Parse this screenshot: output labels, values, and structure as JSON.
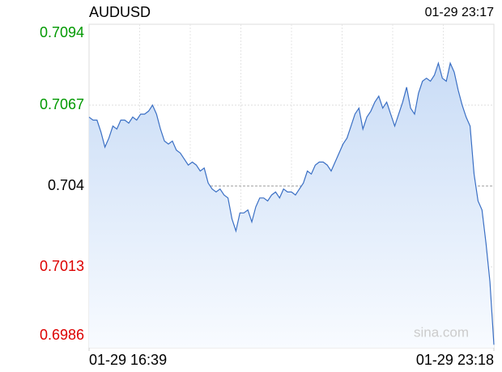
{
  "chart_data": {
    "type": "line",
    "title": "AUDUSD",
    "timestamp": "01-29 23:17",
    "watermark": "sina.com",
    "xlim": [
      0,
      102
    ],
    "xticks": [
      {
        "value": 0,
        "label": "01-29 16:39"
      },
      {
        "value": 102,
        "label": "01-29 23:18"
      }
    ],
    "xgrid": 8,
    "ylim": [
      0.6986,
      0.7094
    ],
    "yticks": [
      0.7094,
      0.7067,
      0.704,
      0.7013,
      0.6986
    ],
    "prev_close": 0.704,
    "up_color": "#009900",
    "down_color": "#dd0000",
    "grid": true,
    "series": [
      {
        "color": "#3a6fc4",
        "values": [
          0.7063,
          0.7062,
          0.7062,
          0.7058,
          0.7053,
          0.7056,
          0.706,
          0.7059,
          0.7062,
          0.7062,
          0.7061,
          0.7063,
          0.7062,
          0.7064,
          0.7064,
          0.7065,
          0.7067,
          0.7064,
          0.7059,
          0.7055,
          0.7054,
          0.7055,
          0.7052,
          0.7051,
          0.7049,
          0.7047,
          0.7048,
          0.7047,
          0.7045,
          0.7046,
          0.7041,
          0.7039,
          0.7038,
          0.7039,
          0.7037,
          0.7036,
          0.7029,
          0.7025,
          0.7031,
          0.7031,
          0.7032,
          0.7028,
          0.7033,
          0.7036,
          0.7036,
          0.7035,
          0.7037,
          0.7038,
          0.7036,
          0.7039,
          0.7038,
          0.7038,
          0.7037,
          0.7039,
          0.7041,
          0.7045,
          0.7044,
          0.7047,
          0.7048,
          0.7048,
          0.7047,
          0.7045,
          0.7048,
          0.7051,
          0.7054,
          0.7056,
          0.706,
          0.7064,
          0.7066,
          0.7059,
          0.7063,
          0.7065,
          0.7068,
          0.707,
          0.7066,
          0.7068,
          0.7064,
          0.706,
          0.7064,
          0.7068,
          0.7073,
          0.7066,
          0.7064,
          0.7071,
          0.7075,
          0.7076,
          0.7075,
          0.7077,
          0.7081,
          0.7076,
          0.7075,
          0.7081,
          0.7078,
          0.7072,
          0.7067,
          0.7063,
          0.706,
          0.7044,
          0.7035,
          0.7032,
          0.7021,
          0.7008,
          0.6987
        ]
      }
    ]
  }
}
